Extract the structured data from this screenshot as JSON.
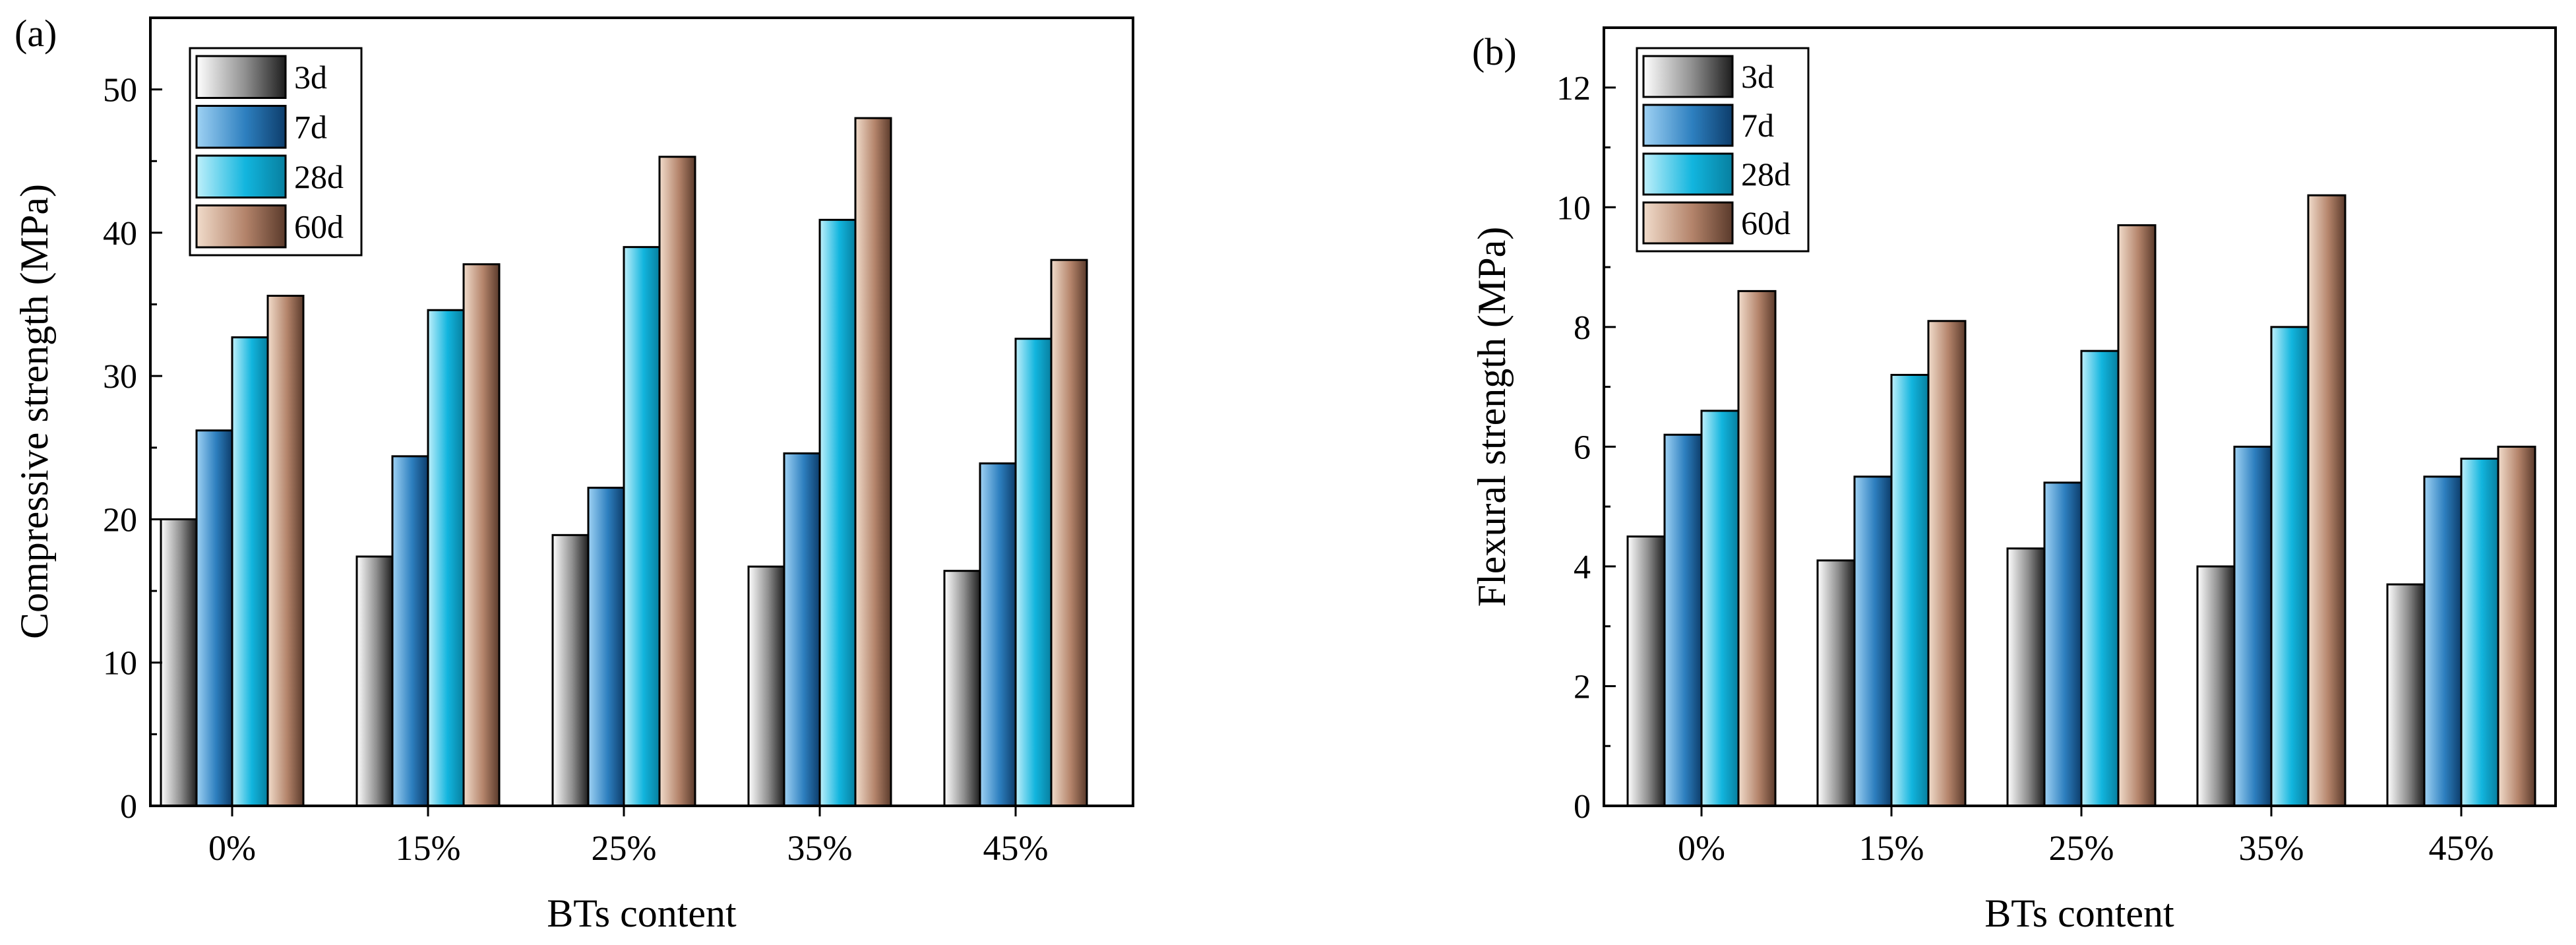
{
  "chart_data": [
    {
      "type": "bar",
      "panel_label": "(a)",
      "categories": [
        "0%",
        "15%",
        "25%",
        "35%",
        "45%"
      ],
      "series": [
        {
          "name": "3d",
          "values": [
            20.0,
            17.4,
            18.9,
            16.7,
            16.4
          ]
        },
        {
          "name": "7d",
          "values": [
            26.2,
            24.4,
            22.2,
            24.6,
            23.9
          ]
        },
        {
          "name": "28d",
          "values": [
            32.7,
            34.6,
            39.0,
            40.9,
            32.6
          ]
        },
        {
          "name": "60d",
          "values": [
            35.6,
            37.8,
            45.3,
            48.0,
            38.1
          ]
        }
      ],
      "xlabel": "BTs content",
      "ylabel": "Compressive strength (MPa)",
      "ylim": [
        0,
        55
      ],
      "yticks": [
        0,
        10,
        20,
        30,
        40,
        50
      ],
      "grid": false,
      "legend_position": "top-left"
    },
    {
      "type": "bar",
      "panel_label": "(b)",
      "categories": [
        "0%",
        "15%",
        "25%",
        "35%",
        "45%"
      ],
      "series": [
        {
          "name": "3d",
          "values": [
            4.5,
            4.1,
            4.3,
            4.0,
            3.7
          ]
        },
        {
          "name": "7d",
          "values": [
            6.2,
            5.5,
            5.4,
            6.0,
            5.5
          ]
        },
        {
          "name": "28d",
          "values": [
            6.6,
            7.2,
            7.6,
            8.0,
            5.8
          ]
        },
        {
          "name": "60d",
          "values": [
            8.6,
            8.1,
            9.7,
            10.2,
            6.0
          ]
        }
      ],
      "xlabel": "BTs content",
      "ylabel": "Flexural strength (MPa)",
      "ylim": [
        0,
        13
      ],
      "yticks": [
        0,
        2,
        4,
        6,
        8,
        10,
        12
      ],
      "grid": false,
      "legend_position": "top-left"
    }
  ],
  "series_colors": {
    "3d": [
      "#ffffff",
      "#8f8f8f",
      "#1e1e1e"
    ],
    "7d": [
      "#9fd2f4",
      "#2d7fbf",
      "#0d3d6b"
    ],
    "28d": [
      "#bff0fb",
      "#12b5de",
      "#077f9f"
    ],
    "60d": [
      "#f1dccb",
      "#b3836a",
      "#5a3a2b"
    ]
  }
}
